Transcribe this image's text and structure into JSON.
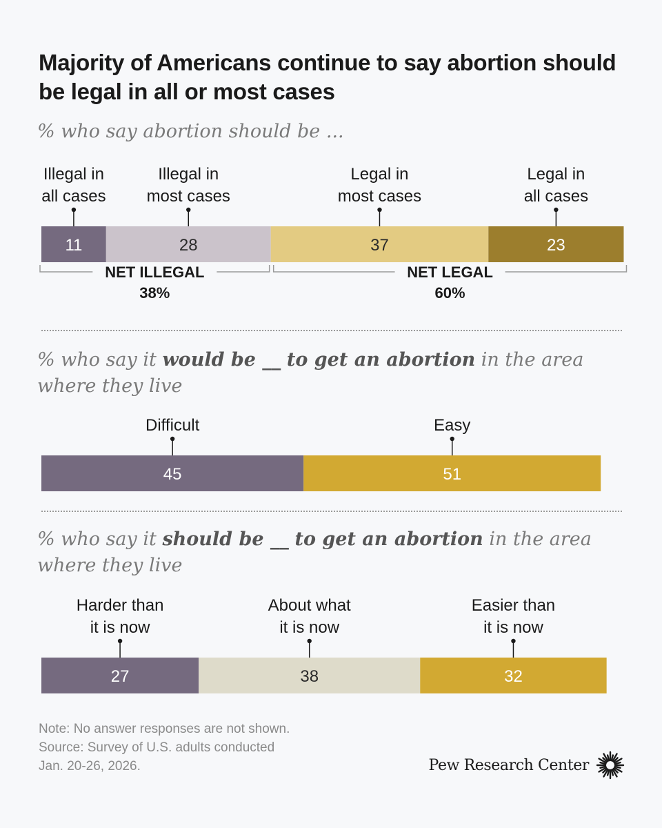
{
  "title": "Majority of Americans continue to say abortion should be legal in all or most cases",
  "subtitle1": "% who say abortion should be ...",
  "subtitle2": {
    "pre": "% who say it ",
    "bold1": "would be __",
    "mid": " ",
    "bold2": "to get an abortion",
    "post": " in the area where they live"
  },
  "subtitle3": {
    "pre": "% who say it ",
    "bold1": "should be __",
    "mid": " ",
    "bold2": "to get an abortion",
    "post": " in the area where they live"
  },
  "colors": {
    "dark_purple": "#756a7f",
    "light_purple": "#cbc3cb",
    "light_gold": "#e3cb82",
    "dark_gold": "#9c7e2d",
    "gold": "#d2a932",
    "beige": "#dedbca"
  },
  "chart_data": [
    {
      "type": "bar",
      "orientation": "horizontal-stacked",
      "title": "% who say abortion should be ...",
      "scale_max": 100,
      "segments": [
        {
          "label": [
            "Illegal in",
            "all cases"
          ],
          "value": 11,
          "color": "#756a7f",
          "text_color": "#ffffff"
        },
        {
          "label": [
            "Illegal in",
            "most cases"
          ],
          "value": 28,
          "color": "#cbc3cb",
          "text_color": "#2b2b2b"
        },
        {
          "label": [
            "Legal in",
            "most cases"
          ],
          "value": 37,
          "color": "#e3cb82",
          "text_color": "#2b2b2b"
        },
        {
          "label": [
            "Legal in",
            "all cases"
          ],
          "value": 23,
          "color": "#9c7e2d",
          "text_color": "#ffffff"
        }
      ],
      "nets": [
        {
          "label": "NET ILLEGAL",
          "value": "38%",
          "segments": [
            0,
            1
          ]
        },
        {
          "label": "NET LEGAL",
          "value": "60%",
          "segments": [
            2,
            3
          ]
        }
      ]
    },
    {
      "type": "bar",
      "orientation": "horizontal-stacked",
      "title": "% who say it would be __ to get an abortion in the area where they live",
      "scale_max": 100,
      "segments": [
        {
          "label": [
            "Difficult"
          ],
          "value": 45,
          "color": "#756a7f",
          "text_color": "#ffffff"
        },
        {
          "label": [
            "Easy"
          ],
          "value": 51,
          "color": "#d2a932",
          "text_color": "#ffffff"
        }
      ]
    },
    {
      "type": "bar",
      "orientation": "horizontal-stacked",
      "title": "% who say it should be __ to get an abortion in the area where they live",
      "scale_max": 100,
      "segments": [
        {
          "label": [
            "Harder than",
            "it is now"
          ],
          "value": 27,
          "color": "#756a7f",
          "text_color": "#ffffff"
        },
        {
          "label": [
            "About what",
            "it is now"
          ],
          "value": 38,
          "color": "#dedbca",
          "text_color": "#2b2b2b"
        },
        {
          "label": [
            "Easier than",
            "it is now"
          ],
          "value": 32,
          "color": "#d2a932",
          "text_color": "#ffffff"
        }
      ]
    }
  ],
  "note": {
    "line1": "Note: No answer responses are not shown.",
    "line2": "Source: Survey of U.S. adults conducted",
    "line3": "Jan. 20-26, 2026."
  },
  "brand": {
    "name": "Pew Research Center",
    "icon": "pew-sunburst-icon"
  }
}
